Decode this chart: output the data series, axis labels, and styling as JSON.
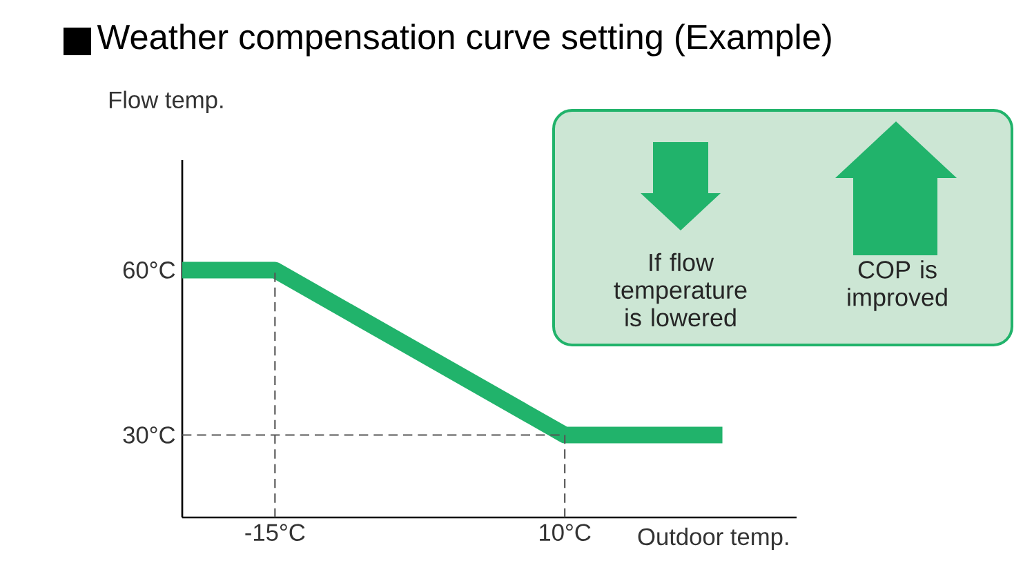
{
  "chart_data": {
    "type": "line",
    "title": "Weather compensation curve setting (Example)",
    "xlabel": "Outdoor temp.",
    "ylabel": "Flow temp.",
    "x": [
      -23,
      -15,
      10,
      23.6
    ],
    "series": [
      {
        "color": "#21b36b",
        "values": [
          60,
          60,
          30,
          30
        ]
      }
    ],
    "xlim": [
      -23,
      30
    ],
    "ylim": [
      15,
      80
    ],
    "xticks": [
      {
        "value": -15,
        "label": "-15°C"
      },
      {
        "value": 10,
        "label": "10°C"
      }
    ],
    "yticks": [
      {
        "value": 30,
        "label": "30°C"
      },
      {
        "value": 60,
        "label": "60°C"
      }
    ],
    "ref_lines": [
      {
        "axis": "x",
        "value": -15,
        "line_style": "dashed",
        "color": "#555555"
      },
      {
        "axis": "x",
        "value": 10,
        "line_style": "dashed",
        "color": "#555555"
      },
      {
        "axis": "y",
        "value": 30,
        "line_style": "dashed",
        "color": "#555555"
      }
    ],
    "annotations": [
      "If flow temperature is lowered",
      "COP is improved"
    ],
    "grid": false,
    "marker": "none",
    "line_style": "solid"
  }
}
